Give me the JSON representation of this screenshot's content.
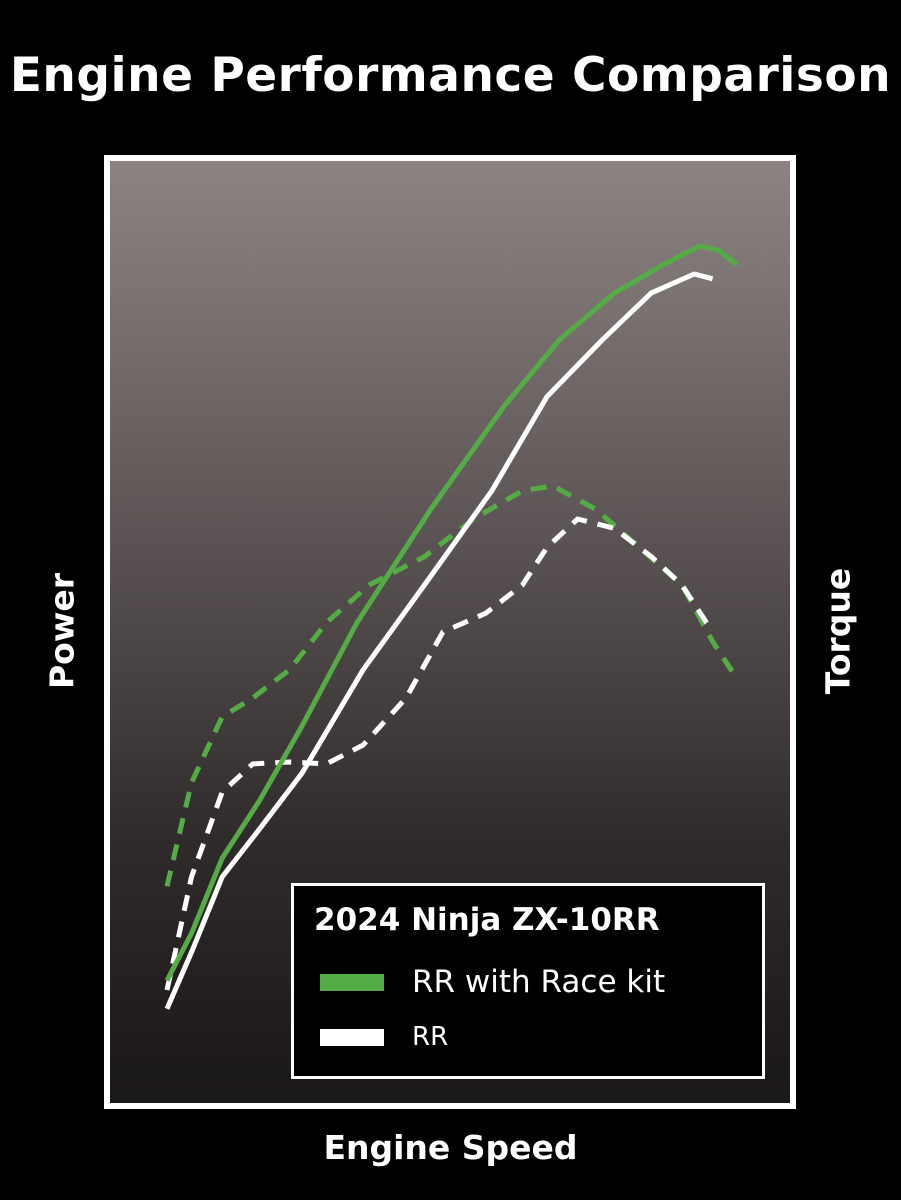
{
  "title": "Engine Performance Comparison",
  "colors": {
    "race_kit": "#55ac47",
    "rr": "#ffffff",
    "background": "#000000"
  },
  "chart_data": {
    "type": "line",
    "title": "Engine Performance Comparison",
    "xlabel": "Engine Speed",
    "ylabel_left": "Power",
    "ylabel_right": "Torque",
    "xlim": [
      0,
      100
    ],
    "ylim": [
      0,
      100
    ],
    "grid": false,
    "legend_title": "2024 Ninja ZX-10RR",
    "legend_position": "bottom-right",
    "series": [
      {
        "name": "RR with Race kit",
        "metric": "power",
        "axis": "left",
        "style": "solid",
        "color": "#55ac47",
        "x": [
          0,
          4,
          9,
          15,
          22,
          31,
          43,
          55,
          64,
          73,
          81,
          87,
          90,
          93
        ],
        "y": [
          13,
          18,
          26,
          32,
          40,
          51,
          63,
          74,
          81,
          86,
          89,
          91,
          90.5,
          89
        ]
      },
      {
        "name": "RR",
        "metric": "power",
        "axis": "left",
        "style": "solid",
        "color": "#ffffff",
        "x": [
          0,
          4,
          9,
          15,
          22,
          32,
          42,
          53,
          62,
          71,
          79,
          86,
          89
        ],
        "y": [
          10,
          16,
          24,
          29,
          35,
          46,
          55,
          65,
          75,
          81,
          86,
          88,
          87.5
        ]
      },
      {
        "name": "RR with Race kit",
        "metric": "torque",
        "axis": "right",
        "style": "dashed",
        "color": "#55ac47",
        "x": [
          0,
          4,
          9,
          14,
          20,
          26,
          33,
          42,
          50,
          58,
          63,
          70,
          77,
          84,
          89,
          93
        ],
        "y": [
          23,
          34,
          41,
          43,
          46,
          51,
          55,
          58,
          62,
          65,
          65.5,
          63,
          59,
          55,
          49,
          45
        ]
      },
      {
        "name": "RR",
        "metric": "torque",
        "axis": "right",
        "style": "dashed",
        "color": "#ffffff",
        "x": [
          0,
          4,
          9,
          14,
          20,
          26,
          32,
          39,
          45,
          52,
          58,
          62,
          67,
          73,
          79,
          84,
          89
        ],
        "y": [
          12,
          24,
          33,
          36,
          36.2,
          36,
          38,
          43,
          50,
          52,
          55,
          59,
          62,
          61,
          58,
          55,
          50
        ]
      }
    ]
  },
  "legend": {
    "title": "2024 Ninja ZX-10RR",
    "items": [
      {
        "label": "RR with Race kit",
        "color": "#55ac47"
      },
      {
        "label": "RR",
        "color": "#ffffff"
      }
    ]
  }
}
